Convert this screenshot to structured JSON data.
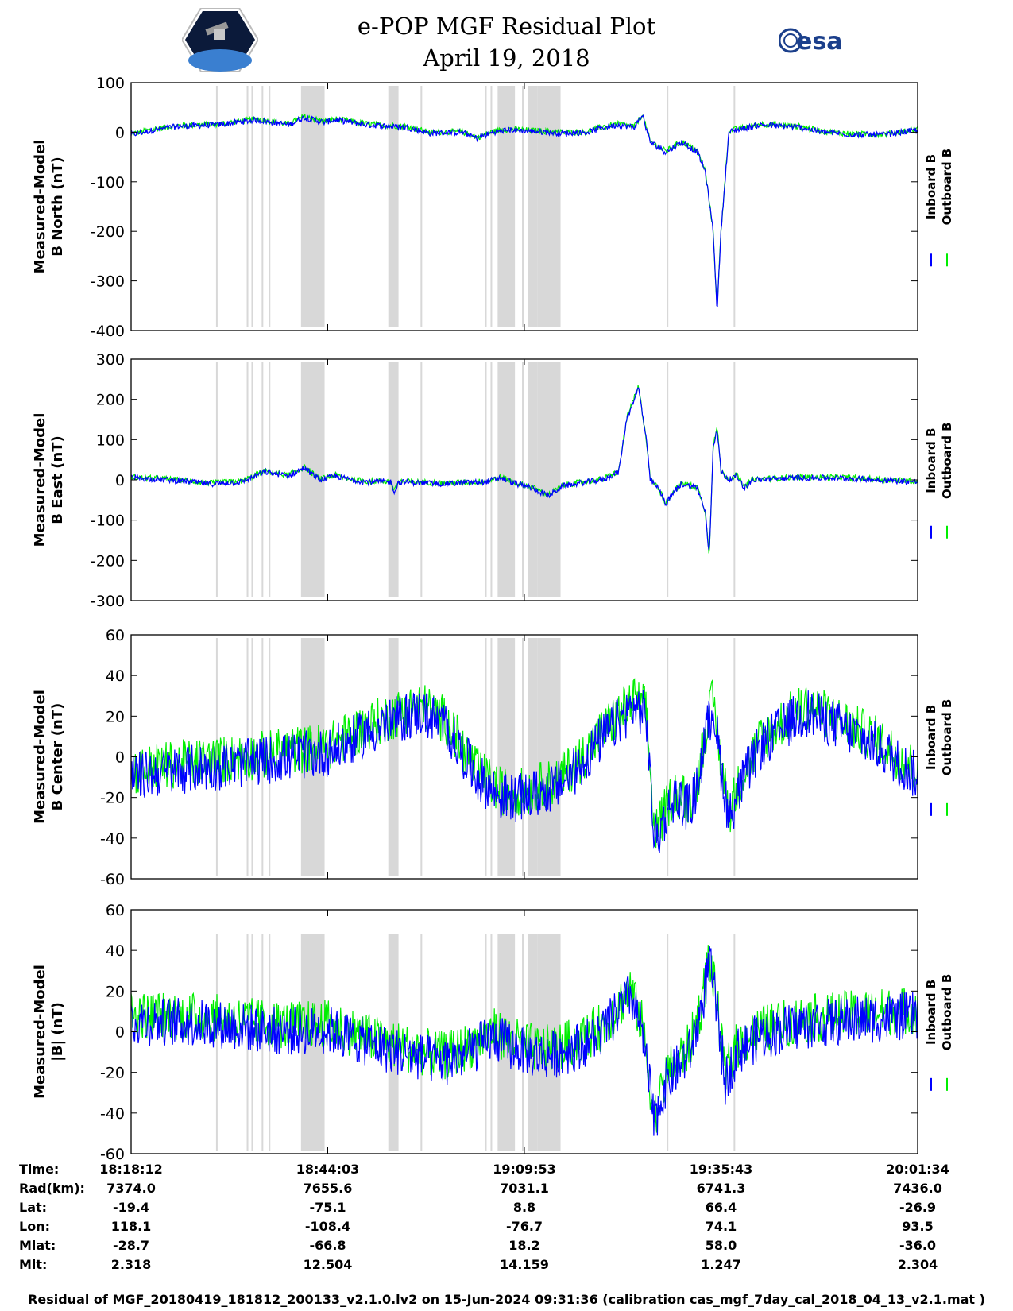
{
  "title": "e-POP MGF Residual Plot",
  "date": "April 19, 2018",
  "logos": {
    "left": "CASSIOPE mission patch",
    "right": "esa"
  },
  "colors": {
    "inboard": "#0000ff",
    "outboard": "#00ee00",
    "gap": "#d8d8d8"
  },
  "legend": {
    "inboard": "Inboard B",
    "outboard": "Outboard B"
  },
  "chart_data": [
    {
      "type": "line",
      "ylabel_1": "Measured-Model",
      "ylabel_2": "B North (nT)",
      "ylim": [
        -400,
        100
      ],
      "yticks": [
        "100",
        "0",
        "-100",
        "-200",
        "-300",
        "-400"
      ],
      "series": [
        {
          "name": "Inboard B",
          "color": "#0000ff"
        },
        {
          "name": "Outboard B",
          "color": "#00ee00"
        }
      ],
      "profile": [
        [
          0,
          -5
        ],
        [
          0.03,
          5
        ],
        [
          0.06,
          12
        ],
        [
          0.11,
          15
        ],
        [
          0.16,
          25
        ],
        [
          0.2,
          15
        ],
        [
          0.22,
          30
        ],
        [
          0.245,
          20
        ],
        [
          0.26,
          25
        ],
        [
          0.3,
          15
        ],
        [
          0.35,
          10
        ],
        [
          0.38,
          -2
        ],
        [
          0.42,
          0
        ],
        [
          0.44,
          -12
        ],
        [
          0.46,
          0
        ],
        [
          0.48,
          5
        ],
        [
          0.5,
          3
        ],
        [
          0.53,
          0
        ],
        [
          0.55,
          -2
        ],
        [
          0.58,
          0
        ],
        [
          0.6,
          10
        ],
        [
          0.62,
          15
        ],
        [
          0.64,
          10
        ],
        [
          0.65,
          35
        ],
        [
          0.66,
          -20
        ],
        [
          0.68,
          -40
        ],
        [
          0.7,
          -20
        ],
        [
          0.72,
          -40
        ],
        [
          0.73,
          -80
        ],
        [
          0.74,
          -200
        ],
        [
          0.745,
          -360
        ],
        [
          0.75,
          -200
        ],
        [
          0.755,
          -100
        ],
        [
          0.76,
          0
        ],
        [
          0.77,
          5
        ],
        [
          0.8,
          15
        ],
        [
          0.85,
          10
        ],
        [
          0.88,
          0
        ],
        [
          0.92,
          -5
        ],
        [
          0.96,
          -5
        ],
        [
          1,
          5
        ]
      ]
    },
    {
      "type": "line",
      "ylabel_1": "Measured-Model",
      "ylabel_2": "B East (nT)",
      "ylim": [
        -300,
        300
      ],
      "yticks": [
        "300",
        "200",
        "100",
        "0",
        "-100",
        "-200",
        "-300"
      ],
      "series": [
        {
          "name": "Inboard B",
          "color": "#0000ff"
        },
        {
          "name": "Outboard B",
          "color": "#00ee00"
        }
      ],
      "profile": [
        [
          0,
          5
        ],
        [
          0.05,
          0
        ],
        [
          0.1,
          -10
        ],
        [
          0.14,
          -5
        ],
        [
          0.17,
          20
        ],
        [
          0.2,
          10
        ],
        [
          0.22,
          30
        ],
        [
          0.24,
          0
        ],
        [
          0.26,
          10
        ],
        [
          0.28,
          0
        ],
        [
          0.3,
          -5
        ],
        [
          0.33,
          -5
        ],
        [
          0.335,
          -30
        ],
        [
          0.34,
          -5
        ],
        [
          0.4,
          -10
        ],
        [
          0.45,
          -5
        ],
        [
          0.47,
          5
        ],
        [
          0.49,
          -10
        ],
        [
          0.51,
          -20
        ],
        [
          0.53,
          -40
        ],
        [
          0.55,
          -15
        ],
        [
          0.58,
          -5
        ],
        [
          0.6,
          0
        ],
        [
          0.62,
          20
        ],
        [
          0.63,
          150
        ],
        [
          0.645,
          230
        ],
        [
          0.655,
          100
        ],
        [
          0.66,
          0
        ],
        [
          0.67,
          -20
        ],
        [
          0.68,
          -60
        ],
        [
          0.69,
          -30
        ],
        [
          0.7,
          -10
        ],
        [
          0.72,
          -20
        ],
        [
          0.73,
          -80
        ],
        [
          0.735,
          -190
        ],
        [
          0.74,
          80
        ],
        [
          0.745,
          130
        ],
        [
          0.75,
          20
        ],
        [
          0.76,
          0
        ],
        [
          0.77,
          10
        ],
        [
          0.78,
          -20
        ],
        [
          0.79,
          0
        ],
        [
          0.85,
          5
        ],
        [
          0.9,
          5
        ],
        [
          1,
          -5
        ]
      ]
    },
    {
      "type": "line",
      "ylabel_1": "Measured-Model",
      "ylabel_2": "B Center (nT)",
      "ylim": [
        -60,
        60
      ],
      "yticks": [
        "60",
        "40",
        "20",
        "0",
        "-20",
        "-40",
        "-60"
      ],
      "series": [
        {
          "name": "Inboard B",
          "color": "#0000ff"
        },
        {
          "name": "Outboard B",
          "color": "#00ee00"
        }
      ],
      "profile": [
        [
          0,
          -10
        ],
        [
          0.05,
          -7
        ],
        [
          0.1,
          -5
        ],
        [
          0.15,
          -3
        ],
        [
          0.2,
          0
        ],
        [
          0.25,
          2
        ],
        [
          0.3,
          12
        ],
        [
          0.35,
          20
        ],
        [
          0.37,
          22
        ],
        [
          0.4,
          15
        ],
        [
          0.44,
          -10
        ],
        [
          0.47,
          -20
        ],
        [
          0.5,
          -20
        ],
        [
          0.54,
          -15
        ],
        [
          0.57,
          -5
        ],
        [
          0.6,
          10
        ],
        [
          0.64,
          25
        ],
        [
          0.655,
          20
        ],
        [
          0.66,
          -10
        ],
        [
          0.665,
          -40
        ],
        [
          0.67,
          -38
        ],
        [
          0.69,
          -20
        ],
        [
          0.71,
          -25
        ],
        [
          0.72,
          -15
        ],
        [
          0.73,
          10
        ],
        [
          0.74,
          25
        ],
        [
          0.75,
          -5
        ],
        [
          0.76,
          -30
        ],
        [
          0.78,
          -10
        ],
        [
          0.8,
          5
        ],
        [
          0.84,
          18
        ],
        [
          0.86,
          22
        ],
        [
          0.9,
          15
        ],
        [
          0.95,
          5
        ],
        [
          1,
          -10
        ]
      ]
    },
    {
      "type": "line",
      "ylabel_1": "Measured-Model",
      "ylabel_2": "|B| (nT)",
      "ylim": [
        -60,
        60
      ],
      "yticks": [
        "60",
        "40",
        "20",
        "0",
        "-20",
        "-40",
        "-60"
      ],
      "series": [
        {
          "name": "Inboard B",
          "color": "#0000ff"
        },
        {
          "name": "Outboard B",
          "color": "#00ee00"
        }
      ],
      "profile": [
        [
          0,
          5
        ],
        [
          0.05,
          5
        ],
        [
          0.1,
          4
        ],
        [
          0.15,
          2
        ],
        [
          0.2,
          0
        ],
        [
          0.25,
          1
        ],
        [
          0.28,
          -3
        ],
        [
          0.32,
          -8
        ],
        [
          0.36,
          -12
        ],
        [
          0.4,
          -15
        ],
        [
          0.43,
          -10
        ],
        [
          0.46,
          -3
        ],
        [
          0.49,
          -8
        ],
        [
          0.52,
          -12
        ],
        [
          0.55,
          -10
        ],
        [
          0.58,
          -5
        ],
        [
          0.6,
          0
        ],
        [
          0.62,
          10
        ],
        [
          0.635,
          18
        ],
        [
          0.65,
          0
        ],
        [
          0.66,
          -30
        ],
        [
          0.665,
          -45
        ],
        [
          0.68,
          -25
        ],
        [
          0.7,
          -15
        ],
        [
          0.71,
          -10
        ],
        [
          0.725,
          10
        ],
        [
          0.735,
          35
        ],
        [
          0.745,
          10
        ],
        [
          0.755,
          -25
        ],
        [
          0.77,
          -10
        ],
        [
          0.8,
          -2
        ],
        [
          0.85,
          3
        ],
        [
          0.9,
          5
        ],
        [
          1,
          8
        ]
      ]
    }
  ],
  "gap_bands": [
    [
      0.108,
      0.109
    ],
    [
      0.147,
      0.148
    ],
    [
      0.153,
      0.154
    ],
    [
      0.166,
      0.167
    ],
    [
      0.175,
      0.176
    ],
    [
      0.216,
      0.246
    ],
    [
      0.327,
      0.34
    ],
    [
      0.368,
      0.369
    ],
    [
      0.45,
      0.452
    ],
    [
      0.457,
      0.458
    ],
    [
      0.466,
      0.488
    ],
    [
      0.497,
      0.498
    ],
    [
      0.505,
      0.517
    ],
    [
      0.517,
      0.546
    ],
    [
      0.681,
      0.682
    ],
    [
      0.766,
      0.767
    ]
  ],
  "time_axis": {
    "labels": {
      "time": "Time:",
      "rad": "Rad(km):",
      "lat": "Lat:",
      "lon": "Lon:",
      "mlat": "Mlat:",
      "mlt": "Mlt:"
    },
    "ticks": [
      {
        "time": "18:18:12",
        "rad": "7374.0",
        "lat": "-19.4",
        "lon": "118.1",
        "mlat": "-28.7",
        "mlt": "2.318"
      },
      {
        "time": "18:44:03",
        "rad": "7655.6",
        "lat": "-75.1",
        "lon": "-108.4",
        "mlat": "-66.8",
        "mlt": "12.504"
      },
      {
        "time": "19:09:53",
        "rad": "7031.1",
        "lat": "8.8",
        "lon": "-76.7",
        "mlat": "18.2",
        "mlt": "14.159"
      },
      {
        "time": "19:35:43",
        "rad": "6741.3",
        "lat": "66.4",
        "lon": "74.1",
        "mlat": "58.0",
        "mlt": "1.247"
      },
      {
        "time": "20:01:34",
        "rad": "7436.0",
        "lat": "-26.9",
        "lon": "93.5",
        "mlat": "-36.0",
        "mlt": "2.304"
      }
    ]
  },
  "footer": "Residual of MGF_20180419_181812_200133_v2.1.0.lv2 on 15-Jun-2024 09:31:36 (calibration cas_mgf_7day_cal_2018_04_13_v2.1.mat )"
}
